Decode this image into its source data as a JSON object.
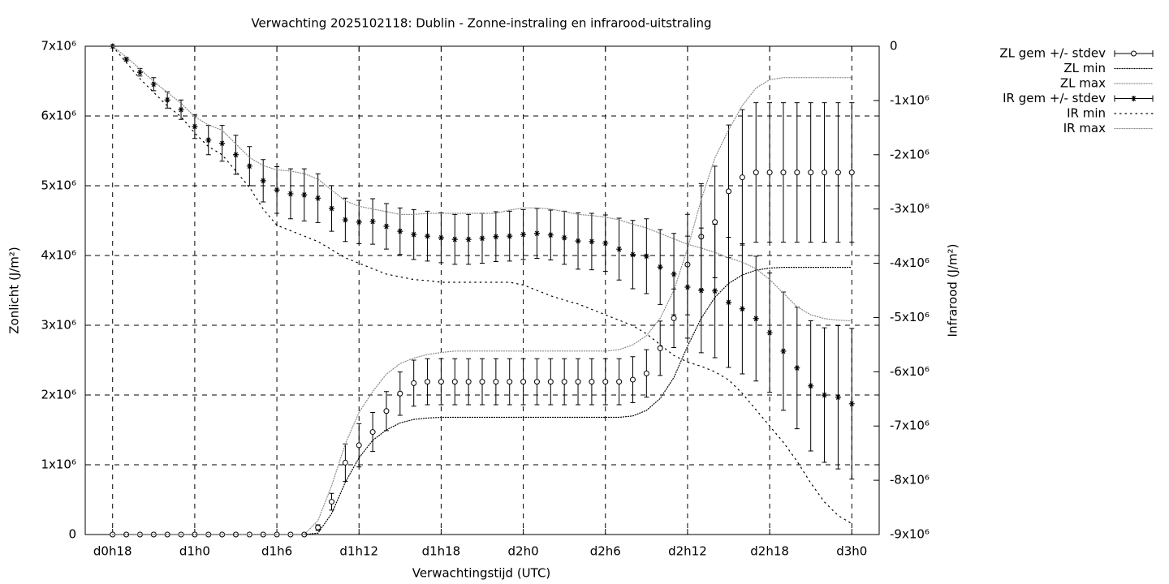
{
  "chart_data": {
    "type": "errorbar",
    "title": "Verwachting 2025102118: Dublin - Zonne-instraling en infrarood-uitstraling",
    "xlabel": "Verwachtingstijd (UTC)",
    "ylabel": "Zonlicht (J/m²)",
    "y2label": "Infrarood (J/m²)",
    "x": [
      18,
      19,
      20,
      21,
      22,
      23,
      24,
      25,
      26,
      27,
      28,
      29,
      30,
      31,
      32,
      33,
      34,
      35,
      36,
      37,
      38,
      39,
      40,
      41,
      42,
      43,
      44,
      45,
      46,
      47,
      48,
      49,
      50,
      51,
      52,
      53,
      54,
      55,
      56,
      57,
      58,
      59,
      60,
      61,
      62,
      63,
      64,
      65,
      66,
      67,
      68,
      69,
      70,
      71,
      72
    ],
    "xlim": [
      16,
      74
    ],
    "xticks": [
      {
        "value": 18,
        "label": "d0h18"
      },
      {
        "value": 24,
        "label": "d1h0"
      },
      {
        "value": 30,
        "label": "d1h6"
      },
      {
        "value": 36,
        "label": "d1h12"
      },
      {
        "value": 42,
        "label": "d1h18"
      },
      {
        "value": 48,
        "label": "d2h0"
      },
      {
        "value": 54,
        "label": "d2h6"
      },
      {
        "value": 60,
        "label": "d2h12"
      },
      {
        "value": 66,
        "label": "d2h18"
      },
      {
        "value": 72,
        "label": "d3h0"
      }
    ],
    "ylim": [
      0,
      7000000.0
    ],
    "yticks": [
      0,
      {
        "value": 1000000.0,
        "label": "1x10⁶"
      },
      {
        "value": 2000000.0,
        "label": "2x10⁶"
      },
      {
        "value": 3000000.0,
        "label": "3x10⁶"
      },
      {
        "value": 4000000.0,
        "label": "4x10⁶"
      },
      {
        "value": 5000000.0,
        "label": "5x10⁶"
      },
      {
        "value": 6000000.0,
        "label": "6x10⁶"
      },
      {
        "value": 7000000.0,
        "label": "7x10⁶"
      }
    ],
    "y2lim": [
      -9000000.0,
      0
    ],
    "y2ticks": [
      0,
      {
        "value": -1000000.0,
        "label": "-1x10⁶"
      },
      {
        "value": -2000000.0,
        "label": "-2x10⁶"
      },
      {
        "value": -3000000.0,
        "label": "-3x10⁶"
      },
      {
        "value": -4000000.0,
        "label": "-4x10⁶"
      },
      {
        "value": -5000000.0,
        "label": "-5x10⁶"
      },
      {
        "value": -6000000.0,
        "label": "-6x10⁶"
      },
      {
        "value": -7000000.0,
        "label": "-7x10⁶"
      },
      {
        "value": -8000000.0,
        "label": "-8x10⁶"
      },
      {
        "value": -9000000.0,
        "label": "-9x10⁶"
      }
    ],
    "grid": true,
    "series": [
      {
        "name": "ZL gem +/- stdev",
        "color": "#000000",
        "style": "errorbars",
        "marker": "circle",
        "axis": "y",
        "values": [
          0,
          0,
          0,
          0,
          0,
          0,
          0,
          0,
          0,
          0,
          0,
          0,
          0,
          0,
          0,
          100000.0,
          470000.0,
          1030000.0,
          1280000.0,
          1470000.0,
          1770000.0,
          2020000.0,
          2170000.0,
          2190000.0,
          2190000.0,
          2190000.0,
          2190000.0,
          2190000.0,
          2190000.0,
          2190000.0,
          2190000.0,
          2190000.0,
          2190000.0,
          2190000.0,
          2190000.0,
          2190000.0,
          2190000.0,
          2190000.0,
          2220000.0,
          2310000.0,
          2670000.0,
          3100000.0,
          3870000.0,
          4270000.0,
          4480000.0,
          4920000.0,
          5120000.0,
          5190000.0,
          5190000.0,
          5190000.0,
          5190000.0,
          5190000.0,
          5190000.0,
          5190000.0,
          5190000.0
        ],
        "errors": [
          0,
          0,
          0,
          0,
          0,
          0,
          0,
          0,
          0,
          0,
          0,
          0,
          0,
          0,
          0,
          40000.0,
          120000.0,
          270000.0,
          310000.0,
          280000.0,
          280000.0,
          310000.0,
          330000.0,
          330000.0,
          330000.0,
          330000.0,
          330000.0,
          330000.0,
          330000.0,
          330000.0,
          330000.0,
          330000.0,
          330000.0,
          330000.0,
          330000.0,
          330000.0,
          330000.0,
          330000.0,
          330000.0,
          340000.0,
          390000.0,
          420000.0,
          720000.0,
          760000.0,
          800000.0,
          950000.0,
          970000.0,
          1000000.0,
          1000000.0,
          1000000.0,
          1000000.0,
          1000000.0,
          1000000.0,
          1000000.0,
          1000000.0
        ]
      },
      {
        "name": "ZL min",
        "color": "#000000",
        "style": "dots",
        "dash": "1 2",
        "axis": "y",
        "values": [
          0,
          0,
          0,
          0,
          0,
          0,
          0,
          0,
          0,
          0,
          0,
          0,
          0,
          0,
          0,
          20000.0,
          300000.0,
          750000.0,
          1100000.0,
          1350000.0,
          1500000.0,
          1600000.0,
          1650000.0,
          1670000.0,
          1680000.0,
          1680000.0,
          1680000.0,
          1680000.0,
          1680000.0,
          1680000.0,
          1680000.0,
          1680000.0,
          1680000.0,
          1680000.0,
          1680000.0,
          1680000.0,
          1680000.0,
          1680000.0,
          1700000.0,
          1780000.0,
          1950000.0,
          2250000.0,
          2700000.0,
          3100000.0,
          3400000.0,
          3600000.0,
          3720000.0,
          3790000.0,
          3820000.0,
          3830000.0,
          3830000.0,
          3830000.0,
          3830000.0,
          3830000.0,
          3830000.0
        ]
      },
      {
        "name": "ZL max",
        "color": "#888888",
        "style": "dots",
        "dash": "1 2",
        "axis": "y",
        "values": [
          0,
          0,
          0,
          0,
          0,
          0,
          0,
          0,
          0,
          0,
          0,
          0,
          0,
          0,
          0,
          200000.0,
          700000.0,
          1300000.0,
          1750000.0,
          2050000.0,
          2300000.0,
          2450000.0,
          2530000.0,
          2580000.0,
          2610000.0,
          2630000.0,
          2630000.0,
          2630000.0,
          2630000.0,
          2630000.0,
          2630000.0,
          2630000.0,
          2630000.0,
          2630000.0,
          2630000.0,
          2630000.0,
          2630000.0,
          2650000.0,
          2720000.0,
          2850000.0,
          3100000.0,
          3500000.0,
          4100000.0,
          4800000.0,
          5400000.0,
          5800000.0,
          6150000.0,
          6400000.0,
          6520000.0,
          6550000.0,
          6550000.0,
          6550000.0,
          6550000.0,
          6550000.0,
          6550000.0
        ]
      },
      {
        "name": "IR gem +/- stdev",
        "color": "#000000",
        "style": "errorbars",
        "marker": "star",
        "axis": "y2",
        "values": [
          0,
          -240000.0,
          -480000.0,
          -700000.0,
          -990000.0,
          -1170000.0,
          -1480000.0,
          -1730000.0,
          -1790000.0,
          -2000000.0,
          -2210000.0,
          -2480000.0,
          -2650000.0,
          -2720000.0,
          -2740000.0,
          -2800000.0,
          -2990000.0,
          -3200000.0,
          -3240000.0,
          -3230000.0,
          -3320000.0,
          -3410000.0,
          -3470000.0,
          -3500000.0,
          -3530000.0,
          -3560000.0,
          -3560000.0,
          -3540000.0,
          -3510000.0,
          -3500000.0,
          -3470000.0,
          -3450000.0,
          -3480000.0,
          -3530000.0,
          -3590000.0,
          -3600000.0,
          -3630000.0,
          -3740000.0,
          -3840000.0,
          -3870000.0,
          -4070000.0,
          -4200000.0,
          -4440000.0,
          -4500000.0,
          -4510000.0,
          -4720000.0,
          -4840000.0,
          -5020000.0,
          -5280000.0,
          -5620000.0,
          -5930000.0,
          -6260000.0,
          -6430000.0,
          -6470000.0,
          -6590000.0
        ],
        "errors": [
          0,
          30000.0,
          70000.0,
          120000.0,
          150000.0,
          180000.0,
          220000.0,
          270000.0,
          330000.0,
          360000.0,
          360000.0,
          390000.0,
          430000.0,
          460000.0,
          480000.0,
          450000.0,
          420000.0,
          400000.0,
          400000.0,
          420000.0,
          420000.0,
          430000.0,
          460000.0,
          460000.0,
          460000.0,
          460000.0,
          460000.0,
          460000.0,
          460000.0,
          460000.0,
          460000.0,
          460000.0,
          460000.0,
          490000.0,
          520000.0,
          520000.0,
          520000.0,
          570000.0,
          630000.0,
          690000.0,
          690000.0,
          750000.0,
          940000.0,
          1150000.0,
          1230000.0,
          1200000.0,
          1200000.0,
          1150000.0,
          1100000.0,
          1090000.0,
          1120000.0,
          1200000.0,
          1240000.0,
          1320000.0,
          1390000.0
        ]
      },
      {
        "name": "IR min",
        "color": "#000000",
        "style": "dots",
        "dash": "1.5 5",
        "axis": "y2",
        "values": [
          0,
          -300000.0,
          -600000.0,
          -850000.0,
          -1100000.0,
          -1300000.0,
          -1600000.0,
          -1850000.0,
          -2000000.0,
          -2300000.0,
          -2600000.0,
          -3000000.0,
          -3300000.0,
          -3400000.0,
          -3500000.0,
          -3600000.0,
          -3750000.0,
          -3900000.0,
          -4000000.0,
          -4100000.0,
          -4200000.0,
          -4250000.0,
          -4300000.0,
          -4320000.0,
          -4350000.0,
          -4350000.0,
          -4350000.0,
          -4350000.0,
          -4350000.0,
          -4350000.0,
          -4400000.0,
          -4500000.0,
          -4600000.0,
          -4680000.0,
          -4750000.0,
          -4850000.0,
          -4950000.0,
          -5050000.0,
          -5150000.0,
          -5300000.0,
          -5500000.0,
          -5700000.0,
          -5820000.0,
          -5900000.0,
          -6000000.0,
          -6150000.0,
          -6400000.0,
          -6700000.0,
          -7000000.0,
          -7300000.0,
          -7650000.0,
          -8050000.0,
          -8400000.0,
          -8650000.0,
          -8800000.0
        ]
      },
      {
        "name": "IR max",
        "color": "#888888",
        "style": "dots",
        "dash": "1 2",
        "axis": "y2",
        "values": [
          0,
          -200000.0,
          -420000.0,
          -650000.0,
          -850000.0,
          -1050000.0,
          -1300000.0,
          -1450000.0,
          -1550000.0,
          -1800000.0,
          -2050000.0,
          -2200000.0,
          -2280000.0,
          -2300000.0,
          -2350000.0,
          -2450000.0,
          -2650000.0,
          -2850000.0,
          -2950000.0,
          -3000000.0,
          -3050000.0,
          -3100000.0,
          -3100000.0,
          -3080000.0,
          -3080000.0,
          -3080000.0,
          -3080000.0,
          -3080000.0,
          -3080000.0,
          -3020000.0,
          -2980000.0,
          -2980000.0,
          -3000000.0,
          -3050000.0,
          -3100000.0,
          -3120000.0,
          -3150000.0,
          -3200000.0,
          -3280000.0,
          -3350000.0,
          -3450000.0,
          -3550000.0,
          -3650000.0,
          -3720000.0,
          -3800000.0,
          -3900000.0,
          -3980000.0,
          -4100000.0,
          -4300000.0,
          -4550000.0,
          -4800000.0,
          -4950000.0,
          -5020000.0,
          -5050000.0,
          -5060000.0
        ]
      }
    ]
  }
}
